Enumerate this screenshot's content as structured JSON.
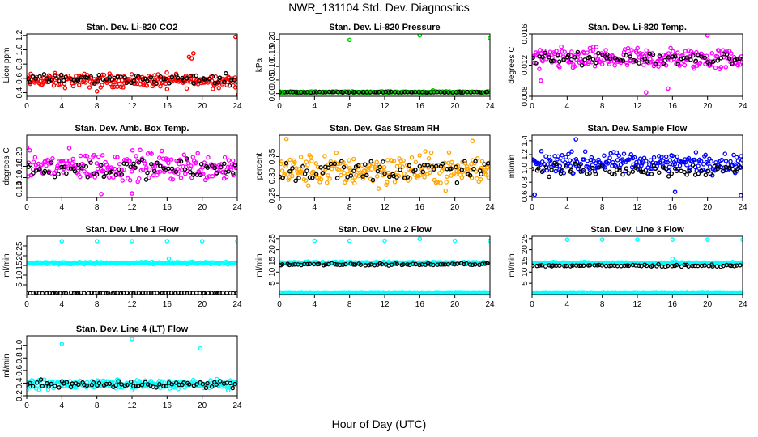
{
  "title": "NWR_131104 Std. Dev. Diagnostics",
  "x_axis_title": "Hour of Day (UTC)",
  "colors": {
    "black_series": "#000000",
    "red": "#ff0000",
    "green": "#00cc00",
    "magenta": "#ff00ff",
    "orange": "#ffa500",
    "blue": "#0000ff",
    "cyan": "#00ffff"
  },
  "chart_data": [
    {
      "type": "scatter",
      "title": "Stan. Dev. Li-820 CO2",
      "ylabel": "Licor ppm",
      "xlim": [
        0,
        24
      ],
      "ylim": [
        0.35,
        1.22
      ],
      "xticks": [
        "0",
        "4",
        "8",
        "12",
        "16",
        "20",
        "24"
      ],
      "yticks": [
        "0.4",
        "0.6",
        "0.8",
        "1.0",
        "1.2"
      ],
      "color": "red",
      "series": [
        {
          "color_key": "red",
          "baseline": 0.57,
          "spread": 0.08,
          "outliers": [
            [
              18.5,
              0.9
            ],
            [
              19.0,
              0.95
            ],
            [
              18.8,
              0.88
            ],
            [
              23.8,
              1.18
            ],
            [
              24.1,
              0.37
            ],
            [
              8.0,
              0.42
            ],
            [
              16.0,
              0.45
            ]
          ]
        },
        {
          "color_key": "black_series",
          "baseline": 0.59,
          "spread": 0.06,
          "outliers": []
        }
      ]
    },
    {
      "type": "scatter",
      "title": "Stan. Dev. Li-820 Pressure",
      "ylabel": "kPa",
      "xlim": [
        0,
        24
      ],
      "ylim": [
        -0.01,
        0.22
      ],
      "xticks": [
        "0",
        "4",
        "8",
        "12",
        "16",
        "20",
        "24"
      ],
      "yticks": [
        "0.00",
        "0.05",
        "0.10",
        "0.15",
        "0.20"
      ],
      "color": "green",
      "series": [
        {
          "color_key": "green",
          "baseline": 0.006,
          "spread": 0.002,
          "outliers": [
            [
              8.0,
              0.198
            ],
            [
              16.0,
              0.215
            ],
            [
              24.0,
              0.205
            ],
            [
              0.2,
              0.004
            ],
            [
              17.5,
              0.012
            ]
          ]
        },
        {
          "color_key": "black_series",
          "baseline": 0.005,
          "spread": 0.001,
          "outliers": []
        }
      ]
    },
    {
      "type": "scatter",
      "title": "Stan. Dev. Li-820 Temp.",
      "ylabel": "degrees C",
      "xlim": [
        0,
        24
      ],
      "ylim": [
        0.008,
        0.016
      ],
      "xticks": [
        "0",
        "4",
        "8",
        "12",
        "16",
        "20",
        "24"
      ],
      "yticks": [
        "0.008",
        "0.012",
        "0.016"
      ],
      "color": "magenta",
      "series": [
        {
          "color_key": "magenta",
          "baseline": 0.0128,
          "spread": 0.0012,
          "outliers": [
            [
              13.0,
              0.0085
            ],
            [
              20.0,
              0.0158
            ],
            [
              1.0,
              0.01
            ],
            [
              15.5,
              0.009
            ]
          ]
        },
        {
          "color_key": "black_series",
          "baseline": 0.0128,
          "spread": 0.0007,
          "outliers": []
        }
      ]
    },
    {
      "type": "scatter",
      "title": "Stan. Dev. Amb. Box Temp.",
      "ylabel": "degrees C",
      "xlim": [
        0,
        24
      ],
      "ylim": [
        0.125,
        0.235
      ],
      "xticks": [
        "0",
        "4",
        "8",
        "12",
        "16",
        "20",
        "24"
      ],
      "yticks": [
        "0.14",
        "0.16",
        "0.18",
        "0.20"
      ],
      "color": "magenta",
      "series": [
        {
          "color_key": "magenta",
          "baseline": 0.18,
          "spread": 0.022,
          "outliers": [
            [
              12.0,
              0.132
            ],
            [
              8.5,
              0.131
            ]
          ]
        },
        {
          "color_key": "black_series",
          "baseline": 0.175,
          "spread": 0.015,
          "outliers": []
        }
      ]
    },
    {
      "type": "scatter",
      "title": "Stan. Dev. Gas Stream RH",
      "ylabel": "percent",
      "xlim": [
        0,
        24
      ],
      "ylim": [
        0.245,
        0.405
      ],
      "xticks": [
        "0",
        "4",
        "8",
        "12",
        "16",
        "20",
        "24"
      ],
      "yticks": [
        "0.25",
        "0.30",
        "0.35"
      ],
      "color": "orange",
      "series": [
        {
          "color_key": "orange",
          "baseline": 0.315,
          "spread": 0.035,
          "outliers": [
            [
              0.8,
              0.395
            ],
            [
              22.0,
              0.39
            ]
          ]
        },
        {
          "color_key": "black_series",
          "baseline": 0.315,
          "spread": 0.025,
          "outliers": []
        }
      ]
    },
    {
      "type": "scatter",
      "title": "Stan. Dev. Sample Flow",
      "ylabel": "ml/min",
      "xlim": [
        0,
        24
      ],
      "ylim": [
        0.58,
        1.48
      ],
      "xticks": [
        "0",
        "4",
        "8",
        "12",
        "16",
        "20",
        "24"
      ],
      "yticks": [
        "0.6",
        "0.8",
        "1.0",
        "1.2",
        "1.4"
      ],
      "color": "blue",
      "series": [
        {
          "color_key": "blue",
          "baseline": 1.08,
          "spread": 0.12,
          "outliers": [
            [
              0.3,
              0.62
            ],
            [
              5.0,
              1.42
            ],
            [
              16.3,
              0.66
            ],
            [
              23.8,
              0.61
            ]
          ]
        },
        {
          "color_key": "black_series",
          "baseline": 0.98,
          "spread": 0.08,
          "outliers": []
        }
      ]
    },
    {
      "type": "scatter",
      "title": "Stan. Dev. Line 1 Flow",
      "ylabel": "ml/min",
      "xlim": [
        0,
        24
      ],
      "ylim": [
        0,
        30
      ],
      "xticks": [
        "0",
        "4",
        "8",
        "12",
        "16",
        "20",
        "24"
      ],
      "yticks": [
        "5",
        "10",
        "15",
        "20",
        "25"
      ],
      "color": "cyan",
      "series": [
        {
          "color_key": "cyan",
          "baseline": 16.2,
          "spread": 0.5,
          "outliers": [
            [
              4.0,
              27.5
            ],
            [
              8.0,
              27.5
            ],
            [
              12.0,
              27.5
            ],
            [
              16.0,
              27.5
            ],
            [
              20.0,
              27.5
            ],
            [
              24.0,
              27.5
            ],
            [
              16.2,
              18.5
            ]
          ]
        },
        {
          "color_key": "black_series",
          "baseline": 0.8,
          "spread": 0.15,
          "outliers": []
        }
      ]
    },
    {
      "type": "scatter",
      "title": "Stan. Dev. Line 2 Flow",
      "ylabel": "ml/min",
      "xlim": [
        0,
        24
      ],
      "ylim": [
        0,
        26
      ],
      "xticks": [
        "0",
        "4",
        "8",
        "12",
        "16",
        "20",
        "24"
      ],
      "yticks": [
        "5",
        "10",
        "15",
        "20",
        "25"
      ],
      "color": "cyan",
      "series": [
        {
          "color_key": "cyan",
          "baseline": 14.2,
          "spread": 0.4,
          "outliers": [
            [
              4.0,
              24.0
            ],
            [
              8.0,
              24.0
            ],
            [
              12.0,
              24.0
            ],
            [
              16.0,
              24.8
            ],
            [
              20.0,
              24.0
            ],
            [
              24.0,
              24.0
            ]
          ]
        },
        {
          "color_key": "cyan",
          "baseline": 0.9,
          "spread": 0.15,
          "outliers": []
        },
        {
          "color_key": "black_series",
          "baseline": 13.5,
          "spread": 0.4,
          "outliers": []
        }
      ]
    },
    {
      "type": "scatter",
      "title": "Stan. Dev. Line 3 Flow",
      "ylabel": "ml/min",
      "xlim": [
        0,
        24
      ],
      "ylim": [
        0,
        26
      ],
      "xticks": [
        "0",
        "4",
        "8",
        "12",
        "16",
        "20",
        "24"
      ],
      "yticks": [
        "5",
        "10",
        "15",
        "20",
        "25"
      ],
      "color": "cyan",
      "series": [
        {
          "color_key": "cyan",
          "baseline": 14.0,
          "spread": 0.4,
          "outliers": [
            [
              4.0,
              24.5
            ],
            [
              8.0,
              24.5
            ],
            [
              12.0,
              24.5
            ],
            [
              16.0,
              24.5
            ],
            [
              20.0,
              24.5
            ],
            [
              24.0,
              24.5
            ],
            [
              16.0,
              16.0
            ]
          ]
        },
        {
          "color_key": "cyan",
          "baseline": 0.9,
          "spread": 0.15,
          "outliers": []
        },
        {
          "color_key": "black_series",
          "baseline": 12.9,
          "spread": 0.4,
          "outliers": []
        }
      ]
    },
    {
      "type": "scatter",
      "title": "Stan. Dev. Line 4 (LT) Flow",
      "ylabel": "ml/min",
      "xlim": [
        0,
        24
      ],
      "ylim": [
        0.2,
        1.15
      ],
      "xticks": [
        "0",
        "4",
        "8",
        "12",
        "16",
        "20",
        "24"
      ],
      "yticks": [
        "0.2",
        "0.4",
        "0.6",
        "0.8",
        "1.0"
      ],
      "color": "cyan",
      "series": [
        {
          "color_key": "cyan",
          "baseline": 0.38,
          "spread": 0.06,
          "outliers": [
            [
              4.0,
              1.02
            ],
            [
              12.0,
              1.1
            ],
            [
              19.8,
              0.95
            ],
            [
              0.0,
              0.29
            ]
          ]
        },
        {
          "color_key": "black_series",
          "baseline": 0.38,
          "spread": 0.05,
          "outliers": []
        }
      ]
    }
  ]
}
